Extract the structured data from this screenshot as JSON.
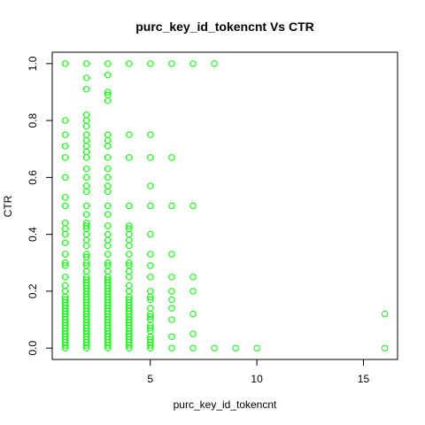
{
  "chart_data": {
    "type": "scatter",
    "title": "purc_key_id_tokencnt Vs CTR",
    "xlabel": "purc_key_id_tokencnt",
    "ylabel": "CTR",
    "xlim": [
      0.4,
      16.6
    ],
    "ylim": [
      -0.04,
      1.04
    ],
    "x_ticks": [
      5,
      10,
      15
    ],
    "y_ticks": [
      0.0,
      0.2,
      0.4,
      0.6,
      0.8,
      1.0
    ],
    "x_tick_labels": [
      "5",
      "10",
      "15"
    ],
    "y_tick_labels": [
      "0.0",
      "0.2",
      "0.4",
      "0.6",
      "0.8",
      "1.0"
    ],
    "grid": false,
    "legend": "none",
    "marker": "open-circle",
    "color": "#00ff00",
    "series": [
      {
        "points": [
          [
            1,
            1.0
          ],
          [
            1,
            0.8
          ],
          [
            1,
            0.75
          ],
          [
            1,
            0.71
          ],
          [
            1,
            0.67
          ],
          [
            1,
            0.6
          ],
          [
            1,
            0.53
          ],
          [
            1,
            0.5
          ],
          [
            1,
            0.44
          ],
          [
            1,
            0.42
          ],
          [
            1,
            0.4
          ],
          [
            1,
            0.37
          ],
          [
            1,
            0.33
          ],
          [
            1,
            0.3
          ],
          [
            1,
            0.29
          ],
          [
            1,
            0.25
          ],
          [
            1,
            0.22
          ],
          [
            1,
            0.2
          ],
          [
            1,
            0.18
          ],
          [
            1,
            0.17
          ],
          [
            1,
            0.16
          ],
          [
            1,
            0.15
          ],
          [
            1,
            0.14
          ],
          [
            1,
            0.13
          ],
          [
            1,
            0.12
          ],
          [
            1,
            0.11
          ],
          [
            1,
            0.1
          ],
          [
            1,
            0.09
          ],
          [
            1,
            0.08
          ],
          [
            1,
            0.07
          ],
          [
            1,
            0.06
          ],
          [
            1,
            0.05
          ],
          [
            1,
            0.04
          ],
          [
            1,
            0.03
          ],
          [
            1,
            0.02
          ],
          [
            1,
            0.01
          ],
          [
            1,
            0.0
          ],
          [
            2,
            1.0
          ],
          [
            2,
            0.95
          ],
          [
            2,
            0.91
          ],
          [
            2,
            0.82
          ],
          [
            2,
            0.8
          ],
          [
            2,
            0.78
          ],
          [
            2,
            0.75
          ],
          [
            2,
            0.73
          ],
          [
            2,
            0.71
          ],
          [
            2,
            0.69
          ],
          [
            2,
            0.67
          ],
          [
            2,
            0.63
          ],
          [
            2,
            0.6
          ],
          [
            2,
            0.57
          ],
          [
            2,
            0.55
          ],
          [
            2,
            0.5
          ],
          [
            2,
            0.47
          ],
          [
            2,
            0.44
          ],
          [
            2,
            0.43
          ],
          [
            2,
            0.42
          ],
          [
            2,
            0.4
          ],
          [
            2,
            0.38
          ],
          [
            2,
            0.36
          ],
          [
            2,
            0.33
          ],
          [
            2,
            0.32
          ],
          [
            2,
            0.3
          ],
          [
            2,
            0.29
          ],
          [
            2,
            0.27
          ],
          [
            2,
            0.25
          ],
          [
            2,
            0.24
          ],
          [
            2,
            0.23
          ],
          [
            2,
            0.22
          ],
          [
            2,
            0.21
          ],
          [
            2,
            0.2
          ],
          [
            2,
            0.19
          ],
          [
            2,
            0.18
          ],
          [
            2,
            0.17
          ],
          [
            2,
            0.16
          ],
          [
            2,
            0.15
          ],
          [
            2,
            0.14
          ],
          [
            2,
            0.13
          ],
          [
            2,
            0.12
          ],
          [
            2,
            0.11
          ],
          [
            2,
            0.1
          ],
          [
            2,
            0.09
          ],
          [
            2,
            0.08
          ],
          [
            2,
            0.07
          ],
          [
            2,
            0.06
          ],
          [
            2,
            0.05
          ],
          [
            2,
            0.04
          ],
          [
            2,
            0.03
          ],
          [
            2,
            0.02
          ],
          [
            2,
            0.01
          ],
          [
            2,
            0.0
          ],
          [
            3,
            1.0
          ],
          [
            3,
            0.96
          ],
          [
            3,
            0.9
          ],
          [
            3,
            0.89
          ],
          [
            3,
            0.87
          ],
          [
            3,
            0.75
          ],
          [
            3,
            0.73
          ],
          [
            3,
            0.71
          ],
          [
            3,
            0.67
          ],
          [
            3,
            0.63
          ],
          [
            3,
            0.6
          ],
          [
            3,
            0.57
          ],
          [
            3,
            0.55
          ],
          [
            3,
            0.5
          ],
          [
            3,
            0.47
          ],
          [
            3,
            0.43
          ],
          [
            3,
            0.4
          ],
          [
            3,
            0.38
          ],
          [
            3,
            0.36
          ],
          [
            3,
            0.33
          ],
          [
            3,
            0.3
          ],
          [
            3,
            0.29
          ],
          [
            3,
            0.27
          ],
          [
            3,
            0.25
          ],
          [
            3,
            0.24
          ],
          [
            3,
            0.23
          ],
          [
            3,
            0.22
          ],
          [
            3,
            0.21
          ],
          [
            3,
            0.2
          ],
          [
            3,
            0.19
          ],
          [
            3,
            0.18
          ],
          [
            3,
            0.17
          ],
          [
            3,
            0.16
          ],
          [
            3,
            0.15
          ],
          [
            3,
            0.14
          ],
          [
            3,
            0.13
          ],
          [
            3,
            0.12
          ],
          [
            3,
            0.11
          ],
          [
            3,
            0.1
          ],
          [
            3,
            0.09
          ],
          [
            3,
            0.08
          ],
          [
            3,
            0.07
          ],
          [
            3,
            0.06
          ],
          [
            3,
            0.05
          ],
          [
            3,
            0.04
          ],
          [
            3,
            0.03
          ],
          [
            3,
            0.02
          ],
          [
            3,
            0.01
          ],
          [
            3,
            0.0
          ],
          [
            4,
            1.0
          ],
          [
            4,
            0.75
          ],
          [
            4,
            0.67
          ],
          [
            4,
            0.5
          ],
          [
            4,
            0.43
          ],
          [
            4,
            0.42
          ],
          [
            4,
            0.4
          ],
          [
            4,
            0.38
          ],
          [
            4,
            0.36
          ],
          [
            4,
            0.33
          ],
          [
            4,
            0.3
          ],
          [
            4,
            0.29
          ],
          [
            4,
            0.27
          ],
          [
            4,
            0.25
          ],
          [
            4,
            0.22
          ],
          [
            4,
            0.2
          ],
          [
            4,
            0.18
          ],
          [
            4,
            0.17
          ],
          [
            4,
            0.16
          ],
          [
            4,
            0.15
          ],
          [
            4,
            0.14
          ],
          [
            4,
            0.13
          ],
          [
            4,
            0.12
          ],
          [
            4,
            0.11
          ],
          [
            4,
            0.1
          ],
          [
            4,
            0.09
          ],
          [
            4,
            0.08
          ],
          [
            4,
            0.07
          ],
          [
            4,
            0.06
          ],
          [
            4,
            0.05
          ],
          [
            4,
            0.04
          ],
          [
            4,
            0.03
          ],
          [
            4,
            0.02
          ],
          [
            4,
            0.01
          ],
          [
            4,
            0.0
          ],
          [
            5,
            1.0
          ],
          [
            5,
            0.75
          ],
          [
            5,
            0.67
          ],
          [
            5,
            0.57
          ],
          [
            5,
            0.5
          ],
          [
            5,
            0.4
          ],
          [
            5,
            0.33
          ],
          [
            5,
            0.29
          ],
          [
            5,
            0.25
          ],
          [
            5,
            0.2
          ],
          [
            5,
            0.18
          ],
          [
            5,
            0.17
          ],
          [
            5,
            0.14
          ],
          [
            5,
            0.12
          ],
          [
            5,
            0.11
          ],
          [
            5,
            0.1
          ],
          [
            5,
            0.08
          ],
          [
            5,
            0.07
          ],
          [
            5,
            0.06
          ],
          [
            5,
            0.04
          ],
          [
            5,
            0.03
          ],
          [
            5,
            0.02
          ],
          [
            5,
            0.01
          ],
          [
            5,
            0.0
          ],
          [
            6,
            1.0
          ],
          [
            6,
            0.67
          ],
          [
            6,
            0.5
          ],
          [
            6,
            0.33
          ],
          [
            6,
            0.25
          ],
          [
            6,
            0.2
          ],
          [
            6,
            0.17
          ],
          [
            6,
            0.14
          ],
          [
            6,
            0.1
          ],
          [
            6,
            0.04
          ],
          [
            6,
            0.0
          ],
          [
            7,
            1.0
          ],
          [
            7,
            0.5
          ],
          [
            7,
            0.25
          ],
          [
            7,
            0.2
          ],
          [
            7,
            0.12
          ],
          [
            7,
            0.05
          ],
          [
            7,
            0.0
          ],
          [
            8,
            1.0
          ],
          [
            8,
            0.0
          ],
          [
            9,
            0.0
          ],
          [
            10,
            0.0
          ],
          [
            16,
            0.12
          ],
          [
            16,
            0.0
          ]
        ]
      }
    ]
  }
}
